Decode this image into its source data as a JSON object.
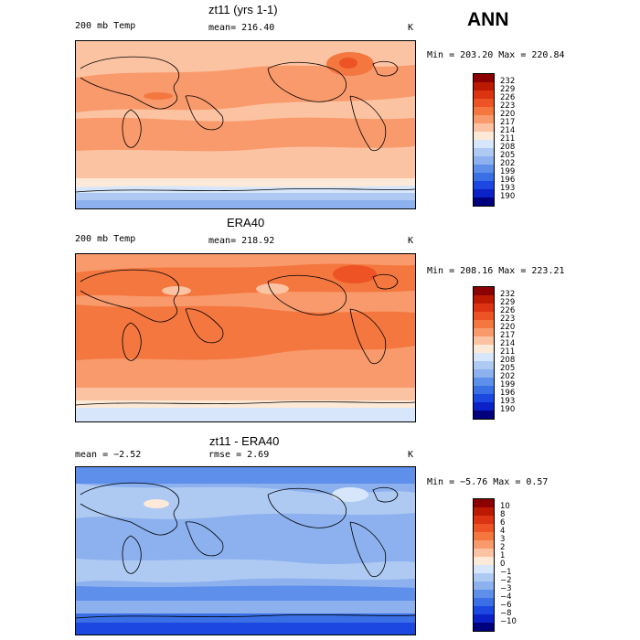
{
  "season": "ANN",
  "panels": [
    {
      "id": "model",
      "title": "zt11 (yrs 1-1)",
      "left_label": "200 mb Temp",
      "center_label": "mean= 216.40",
      "units": "K",
      "minmax": "Min = 203.20 Max = 220.84",
      "colorbar": {
        "labels": [
          "232",
          "229",
          "226",
          "223",
          "220",
          "217",
          "214",
          "211",
          "208",
          "205",
          "202",
          "199",
          "196",
          "193",
          "190"
        ],
        "colors": [
          "#8b0000",
          "#bb1a00",
          "#dc3412",
          "#ee5326",
          "#f4773f",
          "#f99a6c",
          "#fcc3a2",
          "#fde9d8",
          "#d7e6fa",
          "#aecaf3",
          "#8cb1ee",
          "#5e8fea",
          "#3a6fe6",
          "#1c47e0",
          "#0a22c8",
          "#00007f"
        ]
      }
    },
    {
      "id": "obs",
      "title": "ERA40",
      "left_label": "200 mb Temp",
      "center_label": "mean= 218.92",
      "units": "K",
      "minmax": "Min = 208.16 Max = 223.21",
      "colorbar": {
        "labels": [
          "232",
          "229",
          "226",
          "223",
          "220",
          "217",
          "214",
          "211",
          "208",
          "205",
          "202",
          "199",
          "196",
          "193",
          "190"
        ],
        "colors": [
          "#8b0000",
          "#bb1a00",
          "#dc3412",
          "#ee5326",
          "#f4773f",
          "#f99a6c",
          "#fcc3a2",
          "#fde9d8",
          "#d7e6fa",
          "#aecaf3",
          "#8cb1ee",
          "#5e8fea",
          "#3a6fe6",
          "#1c47e0",
          "#0a22c8",
          "#00007f"
        ]
      }
    },
    {
      "id": "diff",
      "title": "zt11 - ERA40",
      "left_label": "mean =  −2.52",
      "center_label": "rmse =   2.69",
      "units": "K",
      "minmax": "Min =  −5.76 Max =   0.57",
      "colorbar": {
        "labels": [
          "10",
          "8",
          "6",
          "4",
          "3",
          "2",
          "1",
          "0",
          "−1",
          "−2",
          "−3",
          "−4",
          "−6",
          "−8",
          "−10"
        ],
        "colors": [
          "#8b0000",
          "#bb1a00",
          "#dc3412",
          "#ee5326",
          "#f4773f",
          "#f99a6c",
          "#fcc3a2",
          "#fde9d8",
          "#d7e6fa",
          "#aecaf3",
          "#8cb1ee",
          "#5e8fea",
          "#3a6fe6",
          "#1c47e0",
          "#0a22c8",
          "#00007f"
        ]
      }
    }
  ]
}
